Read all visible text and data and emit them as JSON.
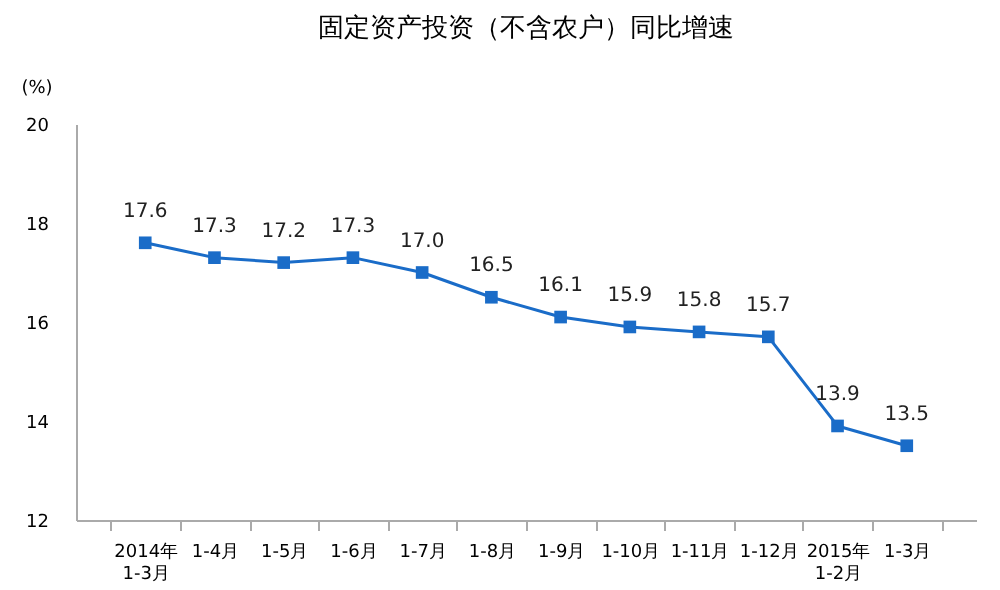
{
  "chart_data": {
    "type": "line",
    "title": "固定资产投资（不含农户）同比增速",
    "ylabel": "(%)",
    "categories": [
      "2014年\n1-3月",
      "1-4月",
      "1-5月",
      "1-6月",
      "1-7月",
      "1-8月",
      "1-9月",
      "1-10月",
      "1-11月",
      "1-12月",
      "2015年\n1-2月",
      "1-3月"
    ],
    "series": [
      {
        "color": "#1a6cc8",
        "values": [
          17.6,
          17.3,
          17.2,
          17.3,
          17.0,
          16.5,
          16.1,
          15.9,
          15.8,
          15.7,
          13.9,
          13.5
        ]
      }
    ],
    "value_labels": [
      "17.6",
      "17.3",
      "17.2",
      "17.3",
      "17.0",
      "16.5",
      "16.1",
      "15.9",
      "15.8",
      "15.7",
      "13.9",
      "13.5"
    ],
    "ylim": [
      12,
      20
    ],
    "yticks": [
      12,
      14,
      16,
      18,
      20
    ],
    "marker": "square",
    "line_style": "solid",
    "grid": false,
    "legend": false
  }
}
